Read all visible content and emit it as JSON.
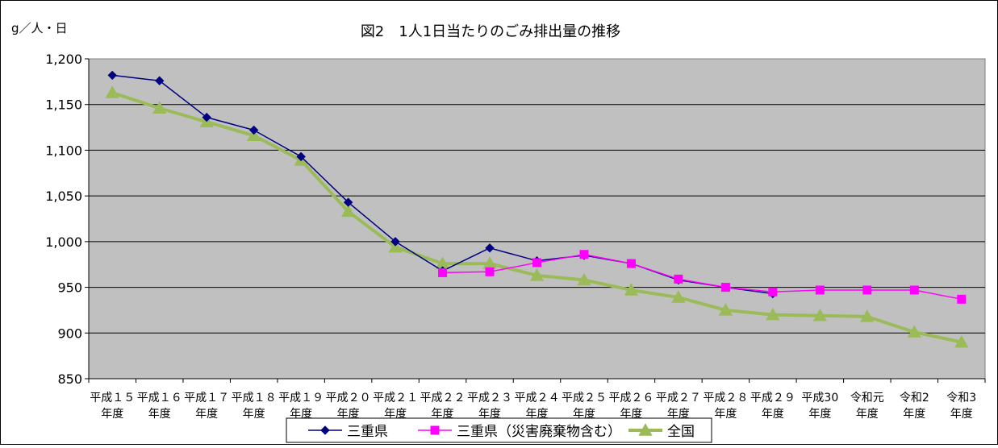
{
  "chart_data": {
    "type": "line",
    "title": "図2　1人1日当たりのごみ排出量の推移",
    "unit_label": "g／人・日",
    "ylim": [
      850,
      1200
    ],
    "ytick_step": 50,
    "ytick_labels": [
      "850",
      "900",
      "950",
      "1,000",
      "1,050",
      "1,100",
      "1,150",
      "1,200"
    ],
    "grid": true,
    "legend_position": "bottom",
    "plot_background": "#c0c0c0",
    "categories": [
      [
        "平成１５",
        "年度"
      ],
      [
        "平成１６",
        "年度"
      ],
      [
        "平成１７",
        "年度"
      ],
      [
        "平成１８",
        "年度"
      ],
      [
        "平成１９",
        "年度"
      ],
      [
        "平成２０",
        "年度"
      ],
      [
        "平成２１",
        "年度"
      ],
      [
        "平成２２",
        "年度"
      ],
      [
        "平成２３",
        "年度"
      ],
      [
        "平成２４",
        "年度"
      ],
      [
        "平成２５",
        "年度"
      ],
      [
        "平成２６",
        "年度"
      ],
      [
        "平成２７",
        "年度"
      ],
      [
        "平成２８",
        "年度"
      ],
      [
        "平成２９",
        "年度"
      ],
      [
        "平成30",
        "年度"
      ],
      [
        "令和元",
        "年度"
      ],
      [
        "令和2",
        "年度"
      ],
      [
        "令和3",
        "年度"
      ]
    ],
    "series": [
      {
        "name": "三重県",
        "color": "#000080",
        "marker": "diamond",
        "values": [
          1182,
          1176,
          1136,
          1122,
          1093,
          1043,
          1000,
          968,
          993,
          979,
          985,
          976,
          958,
          950,
          943,
          null,
          null,
          null,
          null
        ]
      },
      {
        "name": "三重県（災害廃棄物含む）",
        "color": "#ff00ff",
        "marker": "square",
        "values": [
          null,
          null,
          null,
          null,
          null,
          null,
          null,
          966,
          967,
          977,
          986,
          976,
          959,
          950,
          945,
          947,
          947,
          947,
          937
        ]
      },
      {
        "name": "全国",
        "color": "#9bbb59",
        "marker": "triangle",
        "values": [
          1163,
          1146,
          1131,
          1116,
          1089,
          1033,
          994,
          976,
          976,
          963,
          958,
          947,
          939,
          925,
          920,
          919,
          918,
          901,
          890
        ]
      }
    ]
  }
}
